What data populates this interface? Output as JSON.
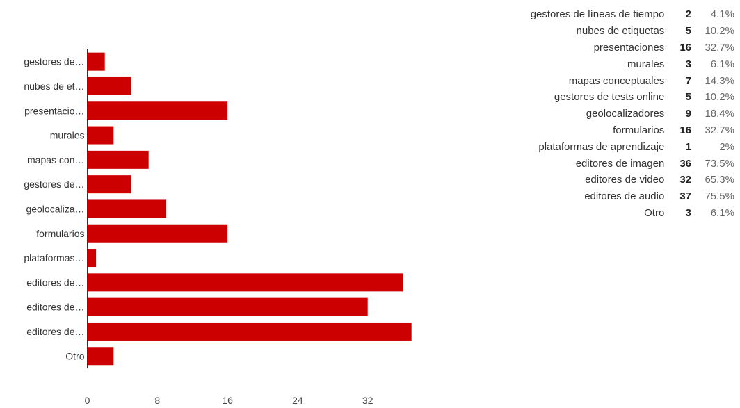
{
  "chart_data": {
    "type": "bar",
    "orientation": "horizontal",
    "categories": [
      "gestores de…",
      "nubes de et…",
      "presentacio…",
      "murales",
      "mapas con…",
      "gestores de…",
      "geolocaliza…",
      "formularios",
      "plataformas…",
      "editores de…",
      "editores de…",
      "editores de…",
      "Otro"
    ],
    "values": [
      2,
      5,
      16,
      3,
      7,
      5,
      9,
      16,
      1,
      36,
      32,
      37,
      3
    ],
    "xticks": [
      "0",
      "8",
      "16",
      "24",
      "32"
    ],
    "xlim": [
      0,
      40
    ],
    "bar_color": "#cc0000",
    "grid": false
  },
  "summary": {
    "rows": [
      {
        "label": "gestores de líneas de tiempo",
        "count": "2",
        "percent": "4.1%"
      },
      {
        "label": "nubes de etiquetas",
        "count": "5",
        "percent": "10.2%"
      },
      {
        "label": "presentaciones",
        "count": "16",
        "percent": "32.7%"
      },
      {
        "label": "murales",
        "count": "3",
        "percent": "6.1%"
      },
      {
        "label": "mapas conceptuales",
        "count": "7",
        "percent": "14.3%"
      },
      {
        "label": "gestores de tests online",
        "count": "5",
        "percent": "10.2%"
      },
      {
        "label": "geolocalizadores",
        "count": "9",
        "percent": "18.4%"
      },
      {
        "label": "formularios",
        "count": "16",
        "percent": "32.7%"
      },
      {
        "label": "plataformas de aprendizaje",
        "count": "1",
        "percent": "2%"
      },
      {
        "label": "editores de imagen",
        "count": "36",
        "percent": "73.5%"
      },
      {
        "label": "editores de video",
        "count": "32",
        "percent": "65.3%"
      },
      {
        "label": "editores de audio",
        "count": "37",
        "percent": "75.5%"
      },
      {
        "label": "Otro",
        "count": "3",
        "percent": "6.1%"
      }
    ]
  }
}
